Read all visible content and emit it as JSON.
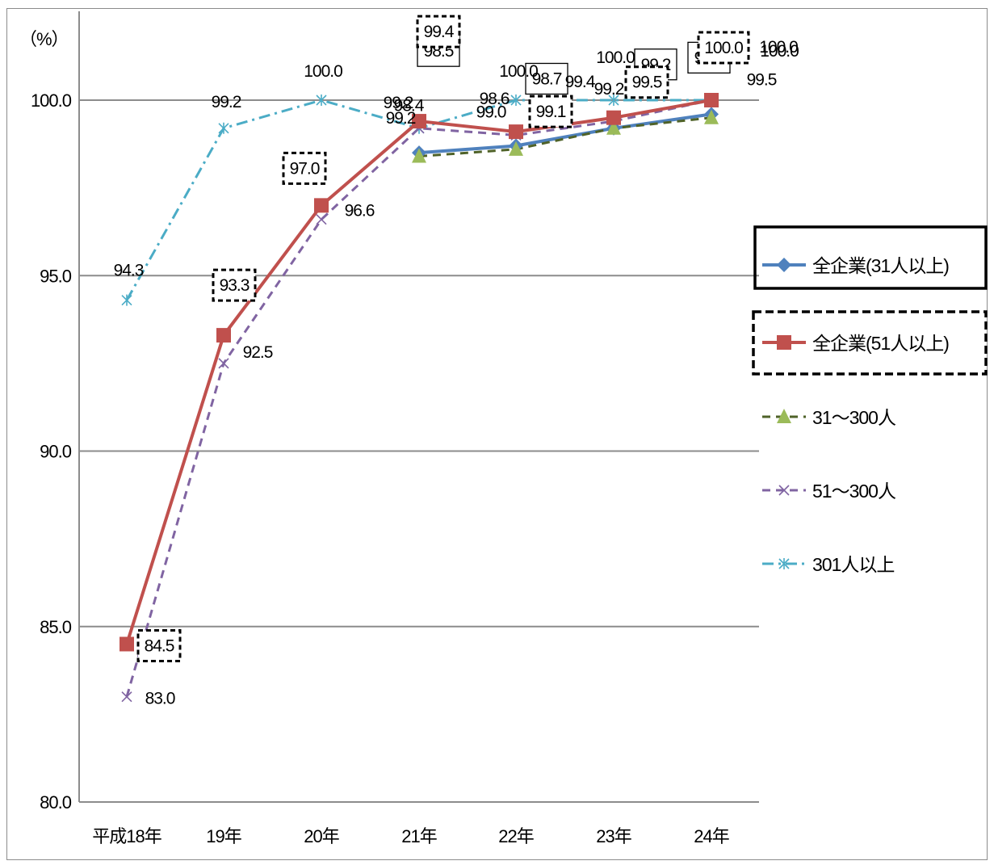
{
  "chart_data": {
    "type": "line",
    "unit_label": "（%）",
    "categories": [
      "平成18年",
      "19年",
      "20年",
      "21年",
      "22年",
      "23年",
      "24年"
    ],
    "ylim": [
      80,
      100
    ],
    "yticks": [
      "80.0",
      "85.0",
      "90.0",
      "95.0",
      "100.0"
    ],
    "grid": true,
    "legend_position": "right",
    "series": [
      {
        "name": "全企業(31人以上)",
        "values": [
          null,
          null,
          null,
          98.5,
          98.7,
          99.2,
          99.6
        ],
        "color": "#4F81BD",
        "marker": "diamond",
        "dash": "solid",
        "legend_box": "solid"
      },
      {
        "name": "全企業(51人以上)",
        "values": [
          84.5,
          93.3,
          97.0,
          99.4,
          99.1,
          99.5,
          100.0
        ],
        "color": "#C0504D",
        "marker": "square",
        "dash": "solid",
        "legend_box": "dashed"
      },
      {
        "name": "31〜300人",
        "values": [
          null,
          null,
          null,
          98.4,
          98.6,
          99.2,
          99.5
        ],
        "color": "#9BBB59",
        "line_color": "#4F6228",
        "marker": "triangle",
        "dash": "dash"
      },
      {
        "name": "51〜300人",
        "values": [
          83.0,
          92.5,
          96.6,
          99.2,
          99.0,
          99.4,
          100.0
        ],
        "color": "#8064A2",
        "marker": "x",
        "dash": "dash"
      },
      {
        "name": "301人以上",
        "values": [
          94.3,
          99.2,
          100.0,
          99.2,
          100.0,
          100.0,
          100.0
        ],
        "color": "#4BACC6",
        "marker": "star",
        "dash": "dashdot"
      }
    ]
  }
}
